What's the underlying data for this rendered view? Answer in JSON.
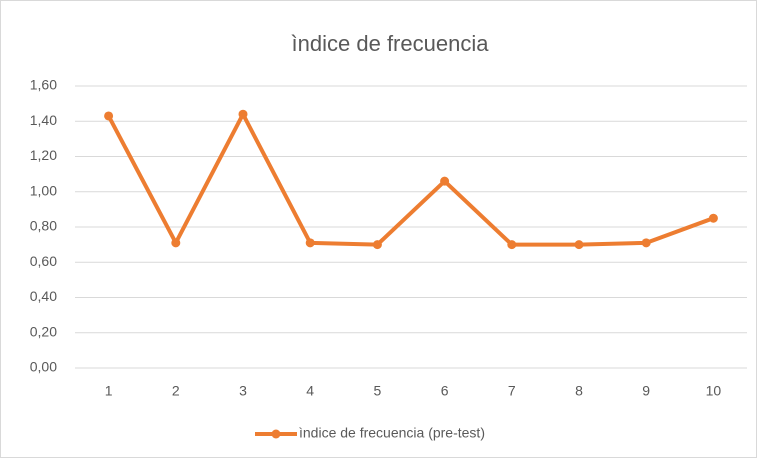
{
  "chart_data": {
    "type": "line",
    "title": "ìndice de frecuencia",
    "categories": [
      "1",
      "2",
      "3",
      "4",
      "5",
      "6",
      "7",
      "8",
      "9",
      "10"
    ],
    "series": [
      {
        "name": "ìndice de frecuencia (pre-test)",
        "color": "#ed7d31",
        "values": [
          1.43,
          0.71,
          1.44,
          0.71,
          0.7,
          1.06,
          0.7,
          0.7,
          0.71,
          0.85
        ]
      }
    ],
    "ylim": [
      0,
      1.6
    ],
    "yticks": [
      {
        "value": 0,
        "label": "0,00"
      },
      {
        "value": 0.2,
        "label": "0,20"
      },
      {
        "value": 0.4,
        "label": "0,40"
      },
      {
        "value": 0.6,
        "label": "0,60"
      },
      {
        "value": 0.8,
        "label": "0,80"
      },
      {
        "value": 1.0,
        "label": "1,00"
      },
      {
        "value": 1.2,
        "label": "1,20"
      },
      {
        "value": 1.4,
        "label": "1,40"
      },
      {
        "value": 1.6,
        "label": "1,60"
      }
    ],
    "grid": true,
    "legend": "bottom"
  }
}
